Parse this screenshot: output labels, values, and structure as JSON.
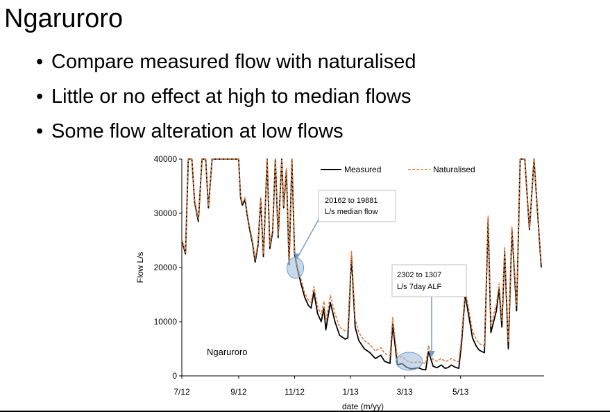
{
  "slide": {
    "title": "Ngaruroro",
    "bullets": [
      "Compare measured flow with naturalised",
      "Little or no effect at high to median flows",
      "Some flow alteration at low flows"
    ]
  },
  "colors": {
    "measured": "#000000",
    "naturalised": "#E07B39",
    "callout_line": "#6F9FC8",
    "highlight_fill": "#9DB9DD"
  },
  "chart_data": {
    "type": "line",
    "title": "",
    "xlabel": "date (m/yy)",
    "ylabel": "Flow L/s",
    "ylim": [
      0,
      40000
    ],
    "yticks": [
      0,
      10000,
      20000,
      30000,
      40000
    ],
    "ytick_labels": [
      "0",
      "10000",
      "20000",
      "30000",
      "40000"
    ],
    "xlim": [
      "2012-07-01",
      "2013-07-31"
    ],
    "xticks": [
      "2012-07-01",
      "2012-09-01",
      "2012-11-01",
      "2013-01-01",
      "2013-03-01",
      "2013-05-01"
    ],
    "xtick_labels": [
      "7/12",
      "9/12",
      "11/12",
      "1/13",
      "3/13",
      "5/13"
    ],
    "grid": false,
    "legend": "top-right",
    "inner_label": "Ngaruroro",
    "series": [
      {
        "name": "Measured",
        "style": "solid",
        "x": [
          "2012-07-01",
          "2012-07-05",
          "2012-07-08",
          "2012-07-12",
          "2012-07-15",
          "2012-07-19",
          "2012-07-23",
          "2012-07-27",
          "2012-07-30",
          "2012-08-03",
          "2012-08-08",
          "2012-08-15",
          "2012-08-25",
          "2012-09-01",
          "2012-09-03",
          "2012-09-05",
          "2012-09-08",
          "2012-09-10",
          "2012-09-13",
          "2012-09-16",
          "2012-09-19",
          "2012-09-22",
          "2012-09-25",
          "2012-09-28",
          "2012-10-02",
          "2012-10-05",
          "2012-10-08",
          "2012-10-11",
          "2012-10-14",
          "2012-10-18",
          "2012-10-20",
          "2012-10-23",
          "2012-10-26",
          "2012-10-29",
          "2012-11-01",
          "2012-11-04",
          "2012-11-08",
          "2012-11-12",
          "2012-11-16",
          "2012-11-19",
          "2012-11-22",
          "2012-11-26",
          "2012-11-30",
          "2012-12-03",
          "2012-12-05",
          "2012-12-10",
          "2012-12-15",
          "2012-12-20",
          "2012-12-26",
          "2012-12-29",
          "2013-01-02",
          "2013-01-06",
          "2013-01-10",
          "2013-01-16",
          "2013-01-22",
          "2013-01-28",
          "2013-02-03",
          "2013-02-07",
          "2013-02-10",
          "2013-02-13",
          "2013-02-16",
          "2013-02-21",
          "2013-02-26",
          "2013-03-03",
          "2013-03-08",
          "2013-03-12",
          "2013-03-16",
          "2013-03-20",
          "2013-03-24",
          "2013-03-27",
          "2013-04-01",
          "2013-04-05",
          "2013-04-10",
          "2013-04-14",
          "2013-04-17",
          "2013-04-21",
          "2013-04-25",
          "2013-04-29",
          "2013-05-02",
          "2013-05-06",
          "2013-05-10",
          "2013-05-14",
          "2013-05-18",
          "2013-05-21",
          "2013-05-24",
          "2013-05-27",
          "2013-05-31",
          "2013-06-03",
          "2013-06-06",
          "2013-06-09",
          "2013-06-12",
          "2013-06-15",
          "2013-06-18",
          "2013-06-22",
          "2013-06-26",
          "2013-07-01",
          "2013-07-05",
          "2013-07-10",
          "2013-07-15",
          "2013-07-20",
          "2013-07-24",
          "2013-07-28"
        ],
        "y": [
          25000,
          22500,
          40000,
          40000,
          32000,
          28500,
          40000,
          40000,
          31000,
          40000,
          40000,
          40000,
          40000,
          40000,
          33000,
          31500,
          32500,
          30000,
          27000,
          24500,
          21000,
          24000,
          32500,
          22000,
          40000,
          23500,
          26500,
          40000,
          25500,
          40000,
          31000,
          38000,
          20500,
          40000,
          22500,
          19800,
          17000,
          14500,
          13000,
          12500,
          15500,
          11500,
          10000,
          12500,
          8500,
          13500,
          10000,
          7500,
          6800,
          7000,
          22000,
          9000,
          6500,
          5000,
          4300,
          3200,
          3800,
          2700,
          2500,
          2300,
          9500,
          2000,
          2300,
          1600,
          1300,
          1400,
          1500,
          1200,
          1100,
          4500,
          1800,
          1500,
          2000,
          1400,
          1500,
          2000,
          1600,
          1400,
          6000,
          15000,
          11000,
          7000,
          5500,
          4800,
          4500,
          4300,
          29000,
          8000,
          10000,
          12000,
          16000,
          9000,
          23000,
          5000,
          27000,
          12000,
          40000,
          40000,
          27000,
          40000,
          30000,
          20000
        ]
      },
      {
        "name": "Naturalised",
        "style": "dashed",
        "x": [
          "2012-07-01",
          "2012-07-05",
          "2012-07-08",
          "2012-07-12",
          "2012-07-15",
          "2012-07-19",
          "2012-07-23",
          "2012-07-27",
          "2012-07-30",
          "2012-08-03",
          "2012-08-08",
          "2012-08-15",
          "2012-08-25",
          "2012-09-01",
          "2012-09-03",
          "2012-09-05",
          "2012-09-08",
          "2012-09-10",
          "2012-09-13",
          "2012-09-16",
          "2012-09-19",
          "2012-09-22",
          "2012-09-25",
          "2012-09-28",
          "2012-10-02",
          "2012-10-05",
          "2012-10-08",
          "2012-10-11",
          "2012-10-14",
          "2012-10-18",
          "2012-10-20",
          "2012-10-23",
          "2012-10-26",
          "2012-10-29",
          "2012-11-01",
          "2012-11-04",
          "2012-11-08",
          "2012-11-12",
          "2012-11-16",
          "2012-11-19",
          "2012-11-22",
          "2012-11-26",
          "2012-11-30",
          "2012-12-03",
          "2012-12-05",
          "2012-12-10",
          "2012-12-15",
          "2012-12-20",
          "2012-12-26",
          "2012-12-29",
          "2013-01-02",
          "2013-01-06",
          "2013-01-10",
          "2013-01-16",
          "2013-01-22",
          "2013-01-28",
          "2013-02-03",
          "2013-02-07",
          "2013-02-10",
          "2013-02-13",
          "2013-02-16",
          "2013-02-21",
          "2013-02-26",
          "2013-03-03",
          "2013-03-08",
          "2013-03-12",
          "2013-03-16",
          "2013-03-20",
          "2013-03-24",
          "2013-03-27",
          "2013-04-01",
          "2013-04-05",
          "2013-04-10",
          "2013-04-14",
          "2013-04-17",
          "2013-04-21",
          "2013-04-25",
          "2013-04-29",
          "2013-05-02",
          "2013-05-06",
          "2013-05-10",
          "2013-05-14",
          "2013-05-18",
          "2013-05-21",
          "2013-05-24",
          "2013-05-27",
          "2013-05-31",
          "2013-06-03",
          "2013-06-06",
          "2013-06-09",
          "2013-06-12",
          "2013-06-15",
          "2013-06-18",
          "2013-06-22",
          "2013-06-26",
          "2013-07-01",
          "2013-07-05",
          "2013-07-10",
          "2013-07-15",
          "2013-07-20",
          "2013-07-24",
          "2013-07-28"
        ],
        "y": [
          25200,
          22800,
          40000,
          40000,
          32300,
          28900,
          40000,
          40000,
          31300,
          40000,
          40000,
          40000,
          40000,
          40000,
          33300,
          31900,
          32900,
          30400,
          27400,
          25000,
          21500,
          24500,
          32900,
          22500,
          40000,
          24000,
          27000,
          40000,
          26000,
          40000,
          31400,
          38300,
          21000,
          40000,
          23200,
          20200,
          17800,
          15300,
          14000,
          13500,
          16500,
          12800,
          11300,
          13800,
          10000,
          14800,
          11500,
          9000,
          8300,
          8500,
          23000,
          10500,
          8000,
          6500,
          5800,
          4600,
          5200,
          4200,
          3900,
          3700,
          10800,
          3300,
          3600,
          2800,
          2500,
          2500,
          2600,
          2400,
          2300,
          5500,
          3000,
          2700,
          3200,
          2700,
          2800,
          3200,
          2800,
          2600,
          7200,
          15800,
          12200,
          8200,
          6800,
          6000,
          5700,
          5500,
          29500,
          9200,
          11300,
          13200,
          17000,
          10200,
          23800,
          6200,
          27500,
          13000,
          40000,
          40000,
          27300,
          40000,
          30300,
          20500
        ]
      }
    ],
    "annotations": [
      {
        "text": [
          "20162 to 19881",
          "L/s median flow"
        ],
        "x": "2012-11-01",
        "y": 20162
      },
      {
        "text": [
          "2302 to 1307",
          "L/s 7day ALF"
        ],
        "x": "2013-03-06",
        "y": 2302
      }
    ]
  }
}
